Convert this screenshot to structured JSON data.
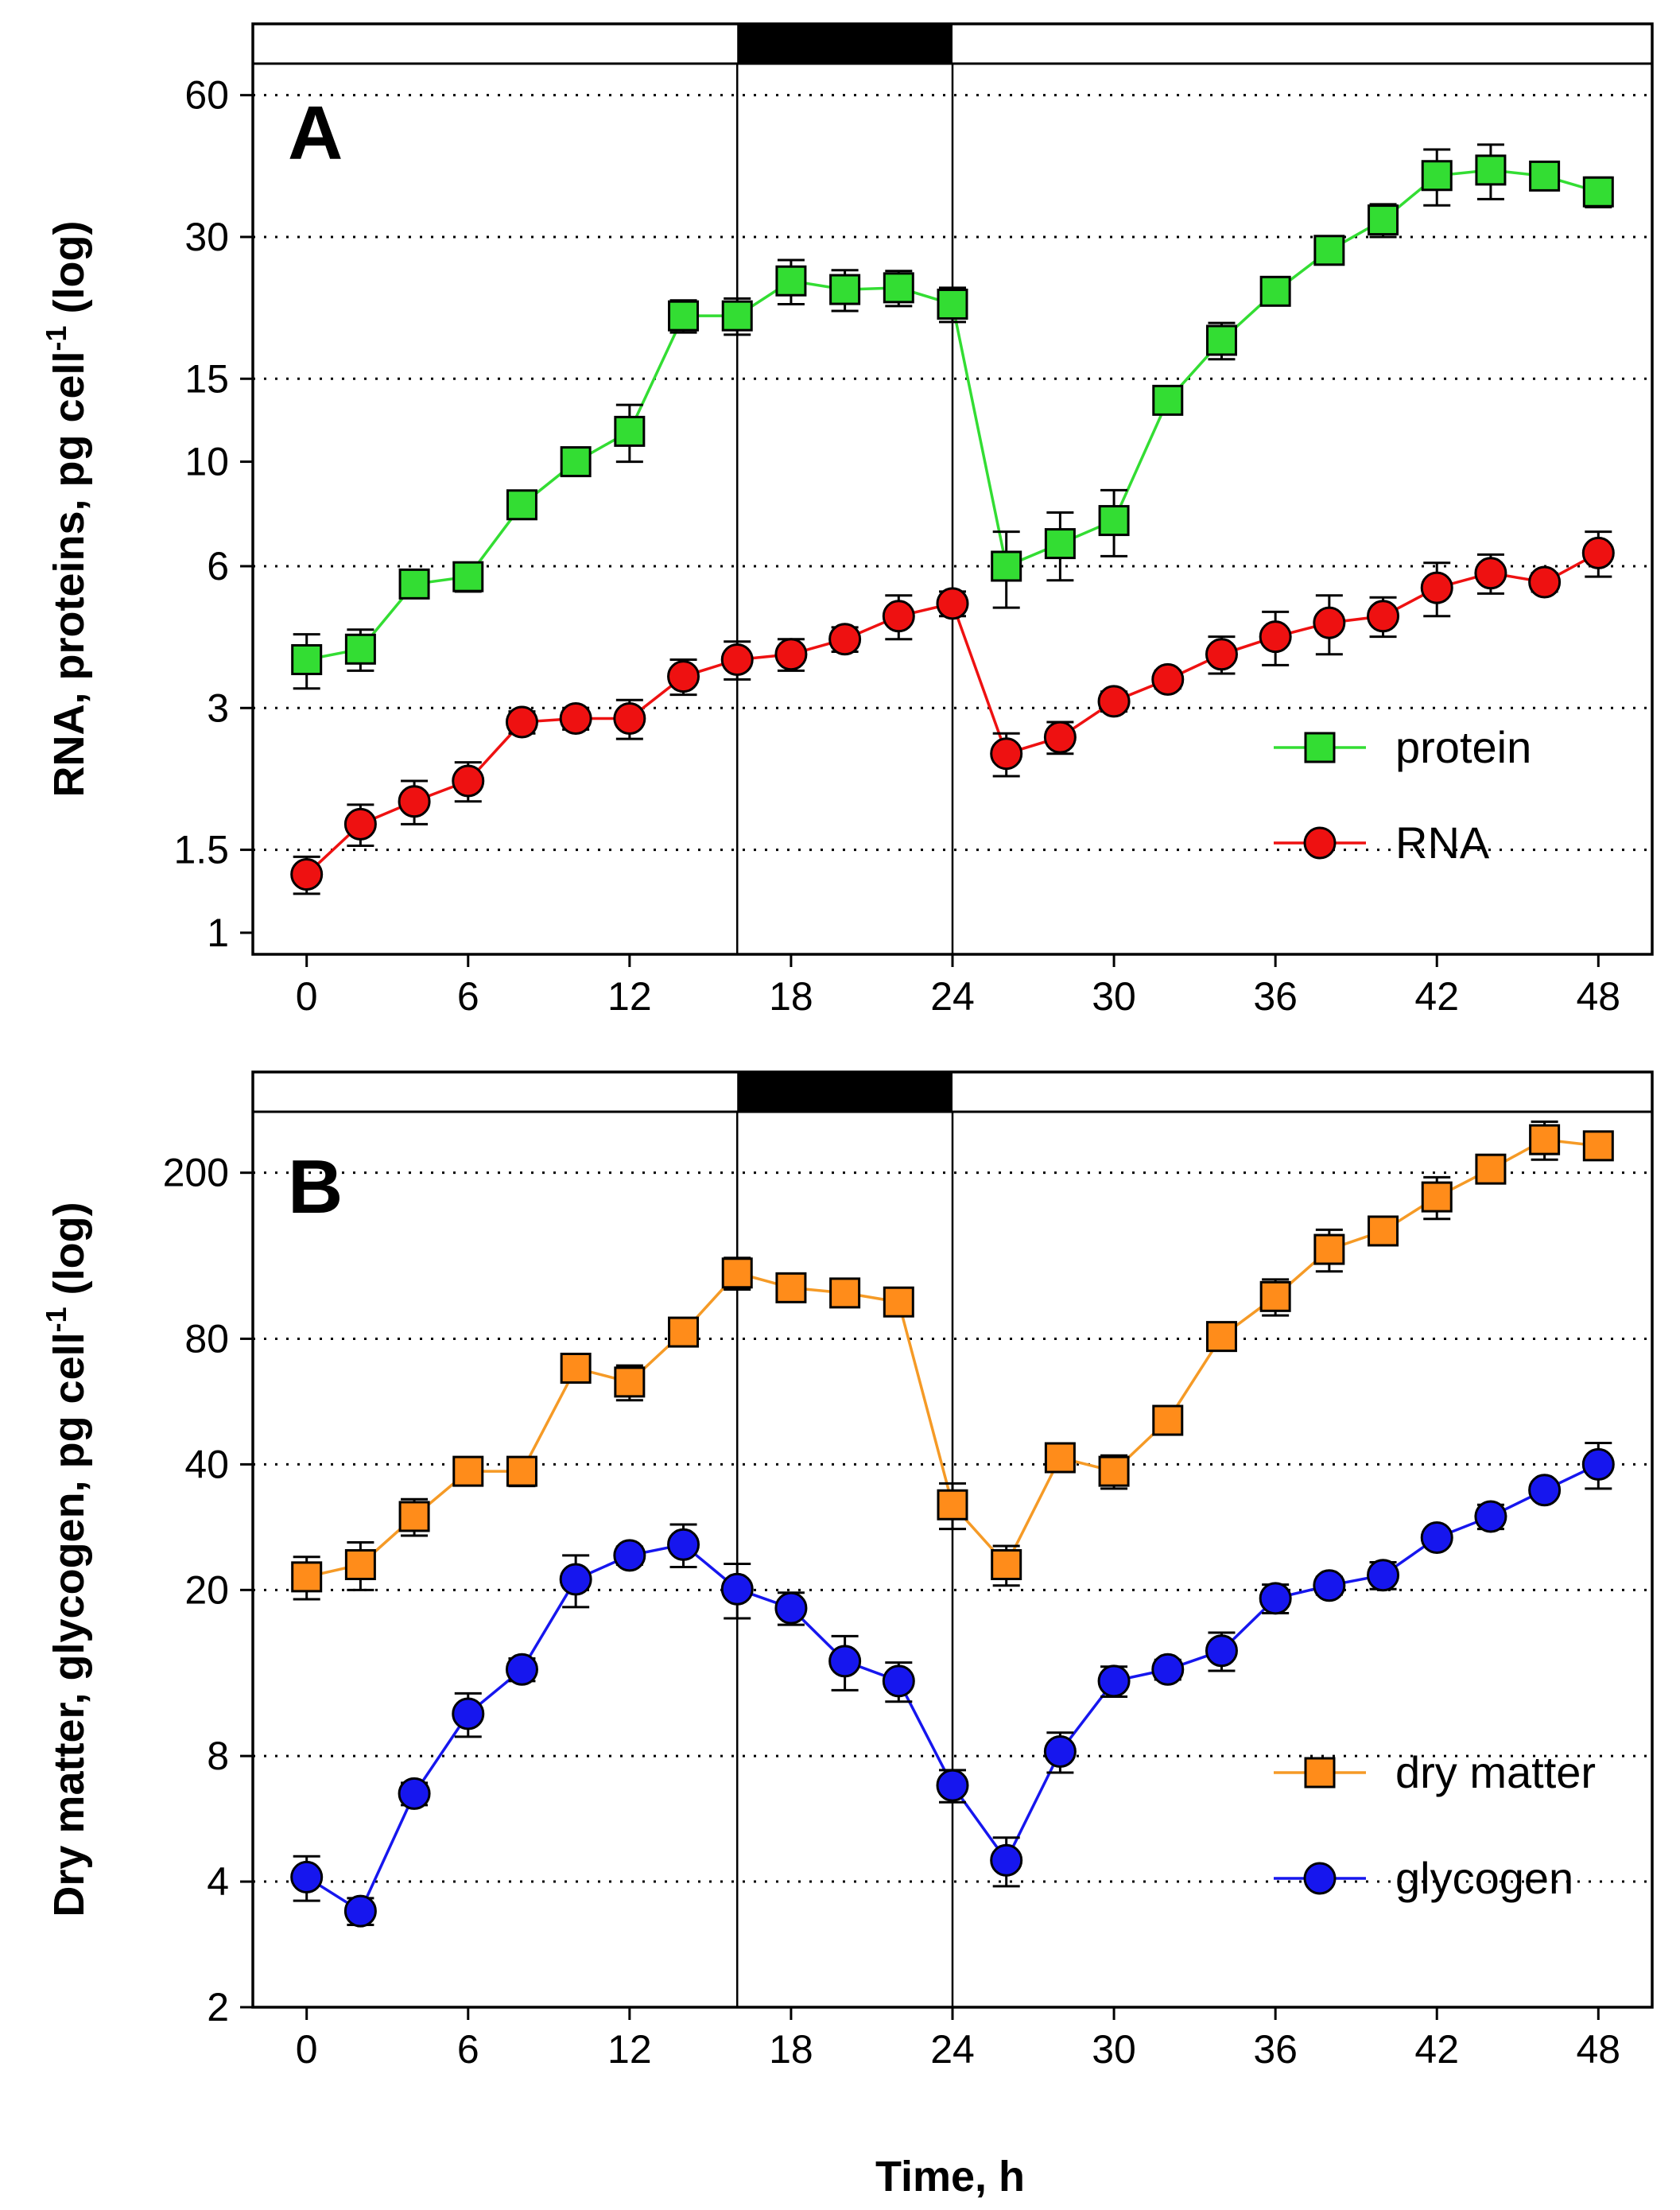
{
  "figure": {
    "x_axis_title": "Time, h"
  },
  "chart_data": [
    {
      "type": "line",
      "panel_label": "A",
      "ylabel_main": "RNA, proteins, pg cell",
      "ylabel_sup": "-1",
      "ylabel_tail": " (log)",
      "xlabel": "Time, h",
      "xlim": [
        -2,
        50
      ],
      "ylim": [
        0.9,
        70
      ],
      "y_scale": "log",
      "xticks": [
        0,
        6,
        12,
        18,
        24,
        30,
        36,
        42,
        48
      ],
      "yticks": [
        1,
        1.5,
        3,
        6,
        10,
        15,
        30,
        60
      ],
      "ytick_labels": [
        "1",
        "1.5",
        "3",
        "6",
        "10",
        "15",
        "30",
        "60"
      ],
      "gridlines_y": [
        1.5,
        3,
        6,
        15,
        30,
        60
      ],
      "dark_period": [
        16,
        24
      ],
      "legend_position": "lower-right",
      "series": [
        {
          "name": "protein",
          "marker": "square",
          "color": "#33dd33",
          "line_color": "#33dd33",
          "x": [
            0,
            2,
            4,
            6,
            8,
            10,
            12,
            14,
            16,
            18,
            20,
            22,
            24,
            26,
            28,
            30,
            32,
            34,
            36,
            38,
            40,
            42,
            44,
            46,
            48
          ],
          "values": [
            3.8,
            4.0,
            5.5,
            5.7,
            8.1,
            10.0,
            11.6,
            20.4,
            20.4,
            24.2,
            23.2,
            23.4,
            21.6,
            6.0,
            6.7,
            7.5,
            13.5,
            18.1,
            23.0,
            28.1,
            32.6,
            40.5,
            41.6,
            40.4,
            37.4
          ],
          "err": [
            0.5,
            0.4,
            0.3,
            0.4,
            0.4,
            0.5,
            1.6,
            1.6,
            1.8,
            2.6,
            2.3,
            2.0,
            1.8,
            1.1,
            1.1,
            1.2,
            0.5,
            1.6,
            1.5,
            1.0,
            2.6,
            5.5,
            5.5,
            1.6,
            2.7
          ]
        },
        {
          "name": "RNA",
          "marker": "circle",
          "color": "#ee1111",
          "line_color": "#ee1111",
          "x": [
            0,
            2,
            4,
            6,
            8,
            10,
            12,
            14,
            16,
            18,
            20,
            22,
            24,
            26,
            28,
            30,
            32,
            34,
            36,
            38,
            40,
            42,
            44,
            46,
            48
          ],
          "values": [
            1.33,
            1.7,
            1.9,
            2.1,
            2.8,
            2.85,
            2.85,
            3.5,
            3.8,
            3.9,
            4.2,
            4.7,
            5.0,
            2.4,
            2.6,
            3.1,
            3.45,
            3.9,
            4.25,
            4.55,
            4.7,
            5.4,
            5.8,
            5.55,
            6.4
          ],
          "err": [
            0.12,
            0.17,
            0.2,
            0.2,
            0.15,
            0.15,
            0.27,
            0.3,
            0.35,
            0.3,
            0.25,
            0.5,
            0.3,
            0.25,
            0.2,
            0.15,
            0.15,
            0.35,
            0.55,
            0.65,
            0.45,
            0.7,
            0.55,
            0.25,
            0.7
          ]
        }
      ]
    },
    {
      "type": "line",
      "panel_label": "B",
      "ylabel_main": "Dry matter, glycogen, pg cell",
      "ylabel_sup": "-1",
      "ylabel_tail": " (log)",
      "xlabel": "Time, h",
      "xlim": [
        -2,
        50
      ],
      "ylim": [
        2,
        280
      ],
      "y_scale": "log",
      "xticks": [
        0,
        6,
        12,
        18,
        24,
        30,
        36,
        42,
        48
      ],
      "yticks": [
        2,
        4,
        8,
        20,
        40,
        80,
        200
      ],
      "ytick_labels": [
        "2",
        "4",
        "8",
        "20",
        "40",
        "80",
        "200"
      ],
      "gridlines_y": [
        4,
        8,
        20,
        40,
        80,
        200
      ],
      "dark_period": [
        16,
        24
      ],
      "legend_position": "lower-right",
      "series": [
        {
          "name": "dry matter",
          "marker": "square",
          "color": "#ff8c1a",
          "line_color": "#f59a26",
          "x": [
            0,
            2,
            4,
            6,
            8,
            10,
            12,
            14,
            16,
            18,
            20,
            22,
            24,
            26,
            28,
            30,
            32,
            34,
            36,
            38,
            40,
            42,
            44,
            46,
            48
          ],
          "values": [
            21.5,
            23.0,
            30.0,
            38.5,
            38.5,
            68.0,
            63.0,
            83.0,
            115.0,
            106.0,
            103.0,
            98.0,
            32.0,
            23.0,
            41.5,
            38.5,
            51.0,
            81.0,
            101.0,
            131.0,
            145.0,
            175.0,
            204.0,
            240.0,
            232.0
          ],
          "err": [
            2.5,
            3.0,
            3.0,
            2.0,
            3.0,
            3.0,
            6.0,
            3.0,
            10.0,
            5.0,
            6.0,
            3.0,
            4.0,
            2.5,
            2.0,
            3.5,
            2.0,
            3.0,
            10.0,
            15.0,
            5.0,
            20.0,
            10.0,
            25.0,
            15.0
          ]
        },
        {
          "name": "glycogen",
          "marker": "circle",
          "color": "#1616ee",
          "line_color": "#1616ee",
          "x": [
            0,
            2,
            4,
            6,
            8,
            10,
            12,
            14,
            16,
            18,
            20,
            22,
            24,
            26,
            28,
            30,
            32,
            34,
            36,
            38,
            40,
            42,
            44,
            46,
            48
          ],
          "values": [
            4.1,
            3.4,
            6.5,
            10.1,
            12.9,
            21.2,
            24.2,
            25.7,
            20.1,
            18.1,
            13.5,
            12.1,
            6.8,
            4.5,
            8.2,
            12.1,
            12.9,
            14.3,
            19.1,
            20.5,
            21.7,
            26.7,
            30.0,
            34.7,
            40.0
          ],
          "err": [
            0.5,
            0.25,
            0.4,
            1.2,
            0.8,
            3.0,
            1.2,
            3.0,
            3.0,
            1.6,
            2.0,
            1.3,
            0.6,
            0.6,
            0.9,
            1.0,
            0.7,
            1.5,
            1.5,
            1.0,
            1.6,
            1.0,
            2.0,
            1.0,
            5.0
          ]
        }
      ]
    }
  ]
}
